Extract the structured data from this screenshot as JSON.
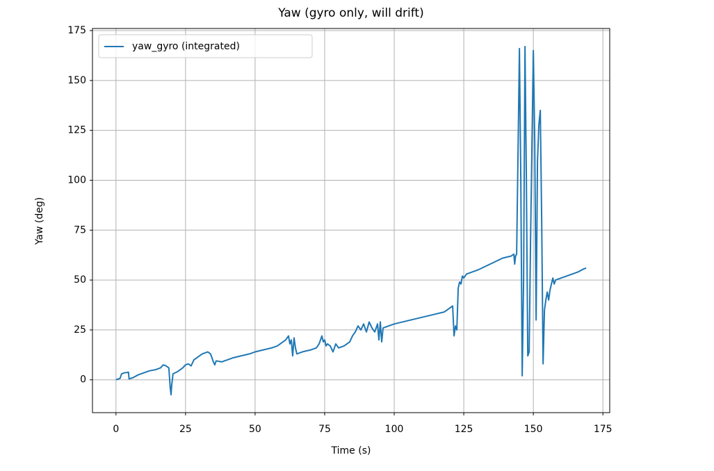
{
  "chart_data": {
    "type": "line",
    "title": "Yaw (gyro only, will drift)",
    "x_label": "Time (s)",
    "y_label": "Yaw (deg)",
    "x": [
      0,
      1,
      1.5,
      2,
      3,
      4.5,
      4.7,
      6,
      8,
      10,
      12,
      14,
      16,
      17,
      18,
      19,
      19.5,
      19.8,
      20,
      20.5,
      22,
      24,
      25,
      26,
      27,
      28,
      30,
      31,
      33,
      34,
      35,
      35.5,
      36,
      38,
      40,
      42,
      45,
      48,
      50,
      53,
      56,
      58,
      60,
      61,
      62,
      62.5,
      63,
      63.5,
      64,
      64.5,
      65,
      67,
      70,
      72,
      73,
      74,
      74.5,
      75,
      75.5,
      76,
      77,
      78,
      79,
      80,
      82,
      84,
      85,
      86,
      87,
      88,
      89,
      90,
      91,
      92,
      93,
      94,
      94.5,
      95,
      95.5,
      96,
      98,
      100,
      103,
      106,
      109,
      112,
      115,
      118,
      119,
      120,
      121,
      121.5,
      122,
      122.5,
      123,
      123.5,
      124,
      124.5,
      125,
      126,
      128,
      130,
      133,
      136,
      139,
      142,
      143,
      143.3,
      143.6,
      144,
      145,
      145.5,
      146,
      146.5,
      147,
      147.5,
      148,
      148.5,
      149,
      150,
      150.5,
      151,
      151.5,
      152,
      152.5,
      153,
      153.5,
      154,
      154.5,
      155,
      155.5,
      156,
      157,
      157.5,
      158,
      160,
      162,
      164,
      166,
      168,
      169
    ],
    "series": [
      {
        "name": "yaw_gyro (integrated)",
        "color": "#1f77b4",
        "values": [
          0,
          0.5,
          0.8,
          3,
          3.5,
          3.8,
          0.5,
          1,
          2.5,
          3.5,
          4.5,
          5,
          6,
          7.5,
          7,
          6,
          -4,
          -7.5,
          -3,
          3,
          4,
          6,
          7.5,
          8,
          7,
          10,
          12,
          13,
          14,
          13,
          9,
          7.5,
          9.5,
          9,
          10,
          11,
          12,
          13,
          14,
          15,
          16,
          17,
          19,
          20,
          22,
          18,
          20,
          12,
          21,
          16,
          13,
          14,
          15,
          16,
          18,
          22,
          19,
          20,
          17,
          18,
          17,
          14,
          18,
          16,
          17,
          19,
          22,
          24,
          27,
          25,
          28,
          24,
          29,
          26,
          24,
          28,
          20,
          29,
          19,
          26,
          27,
          28,
          29,
          30,
          31,
          32,
          33,
          34,
          35,
          36,
          37,
          22,
          27,
          25,
          46,
          49,
          48,
          52,
          51,
          53,
          54,
          55,
          57,
          59,
          61,
          62,
          63,
          58,
          62,
          63,
          166,
          100,
          2,
          50,
          167,
          100,
          12,
          14,
          70,
          165,
          120,
          30,
          110,
          128,
          135,
          80,
          8,
          35,
          40,
          44,
          40,
          45,
          51,
          48,
          50,
          51,
          52,
          53,
          54,
          55.5,
          56
        ]
      }
    ],
    "xlim": [
      -8.45,
      177.45
    ],
    "ylim": [
      -16.45,
      176.05
    ],
    "xticks": [
      0,
      25,
      50,
      75,
      100,
      125,
      150,
      175
    ],
    "yticks": [
      0,
      25,
      50,
      75,
      100,
      125,
      150,
      175
    ],
    "grid": true,
    "legend": "upper-left"
  }
}
